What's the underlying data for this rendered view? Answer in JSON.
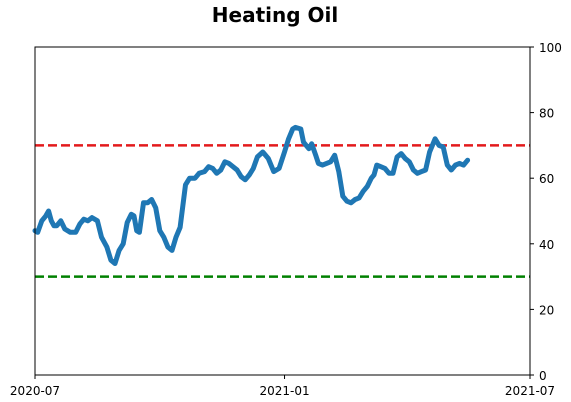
{
  "chart_data": {
    "type": "line",
    "title": "Heating Oil",
    "xlabel": "",
    "ylabel": "",
    "x_ticks": [
      "2020-07",
      "2021-01",
      "2021-07"
    ],
    "y_ticks": [
      "0",
      "20",
      "40",
      "60",
      "80",
      "100"
    ],
    "ylim": [
      0,
      100
    ],
    "y_axis_side": "right",
    "grid": false,
    "reference_lines": [
      {
        "value": 70,
        "color": "#e31a1c",
        "style": "dashed"
      },
      {
        "value": 30,
        "color": "#008000",
        "style": "dashed"
      }
    ],
    "series": [
      {
        "color": "#1f77b4",
        "points": [
          [
            "2020-07-01",
            44
          ],
          [
            "2020-07-03",
            43.5
          ],
          [
            "2020-07-06",
            47
          ],
          [
            "2020-07-09",
            48.5
          ],
          [
            "2020-07-11",
            50
          ],
          [
            "2020-07-13",
            47
          ],
          [
            "2020-07-15",
            45.5
          ],
          [
            "2020-07-17",
            45.5
          ],
          [
            "2020-07-20",
            47
          ],
          [
            "2020-07-23",
            44.5
          ],
          [
            "2020-07-27",
            43.5
          ],
          [
            "2020-07-31",
            43.5
          ],
          [
            "2020-08-03",
            46
          ],
          [
            "2020-08-06",
            47.5
          ],
          [
            "2020-08-09",
            47
          ],
          [
            "2020-08-12",
            48
          ],
          [
            "2020-08-16",
            47
          ],
          [
            "2020-08-19",
            42
          ],
          [
            "2020-08-23",
            39
          ],
          [
            "2020-08-26",
            35
          ],
          [
            "2020-08-29",
            34
          ],
          [
            "2020-09-01",
            38
          ],
          [
            "2020-09-04",
            40
          ],
          [
            "2020-09-07",
            46.5
          ],
          [
            "2020-09-10",
            49
          ],
          [
            "2020-09-12",
            48.5
          ],
          [
            "2020-09-14",
            44
          ],
          [
            "2020-09-16",
            43.5
          ],
          [
            "2020-09-19",
            52.5
          ],
          [
            "2020-09-22",
            52.5
          ],
          [
            "2020-09-25",
            53.5
          ],
          [
            "2020-09-28",
            51
          ],
          [
            "2020-10-01",
            44
          ],
          [
            "2020-10-04",
            42
          ],
          [
            "2020-10-07",
            39
          ],
          [
            "2020-10-10",
            38
          ],
          [
            "2020-10-13",
            42
          ],
          [
            "2020-10-16",
            45
          ],
          [
            "2020-10-20",
            58
          ],
          [
            "2020-10-23",
            60
          ],
          [
            "2020-10-27",
            60
          ],
          [
            "2020-10-30",
            61.5
          ],
          [
            "2020-11-03",
            62
          ],
          [
            "2020-11-06",
            63.5
          ],
          [
            "2020-11-09",
            63
          ],
          [
            "2020-11-12",
            61.5
          ],
          [
            "2020-11-15",
            62.5
          ],
          [
            "2020-11-18",
            65
          ],
          [
            "2020-11-21",
            64.5
          ],
          [
            "2020-11-24",
            63.5
          ],
          [
            "2020-11-27",
            62.5
          ],
          [
            "2020-11-30",
            60.5
          ],
          [
            "2020-12-03",
            59.5
          ],
          [
            "2020-12-06",
            61
          ],
          [
            "2020-12-09",
            63
          ],
          [
            "2020-12-12",
            66.5
          ],
          [
            "2020-12-16",
            68
          ],
          [
            "2020-12-20",
            66
          ],
          [
            "2020-12-24",
            62
          ],
          [
            "2020-12-28",
            63
          ],
          [
            "2021-01-01",
            68
          ],
          [
            "2021-01-04",
            72
          ],
          [
            "2021-01-07",
            75
          ],
          [
            "2021-01-09",
            75.5
          ],
          [
            "2021-01-13",
            75
          ],
          [
            "2021-01-15",
            71
          ],
          [
            "2021-01-17",
            70
          ],
          [
            "2021-01-19",
            69
          ],
          [
            "2021-01-21",
            70.5
          ],
          [
            "2021-01-24",
            67
          ],
          [
            "2021-01-26",
            64.5
          ],
          [
            "2021-01-29",
            64
          ],
          [
            "2021-02-01",
            64.5
          ],
          [
            "2021-02-04",
            65
          ],
          [
            "2021-02-07",
            67
          ],
          [
            "2021-02-10",
            62
          ],
          [
            "2021-02-13",
            54.5
          ],
          [
            "2021-02-16",
            53
          ],
          [
            "2021-02-19",
            52.5
          ],
          [
            "2021-02-22",
            53.5
          ],
          [
            "2021-02-25",
            54
          ],
          [
            "2021-02-28",
            56
          ],
          [
            "2021-03-03",
            57.5
          ],
          [
            "2021-03-06",
            60
          ],
          [
            "2021-03-08",
            61
          ],
          [
            "2021-03-10",
            64
          ],
          [
            "2021-03-13",
            63.5
          ],
          [
            "2021-03-16",
            63
          ],
          [
            "2021-03-19",
            61.5
          ],
          [
            "2021-03-22",
            61.5
          ],
          [
            "2021-03-25",
            66.5
          ],
          [
            "2021-03-28",
            67.5
          ],
          [
            "2021-03-31",
            66
          ],
          [
            "2021-04-03",
            65
          ],
          [
            "2021-04-06",
            62.5
          ],
          [
            "2021-04-09",
            61.5
          ],
          [
            "2021-04-12",
            62
          ],
          [
            "2021-04-15",
            62.5
          ],
          [
            "2021-04-18",
            68
          ],
          [
            "2021-04-22",
            72
          ],
          [
            "2021-04-25",
            70
          ],
          [
            "2021-04-28",
            69.5
          ],
          [
            "2021-05-01",
            64
          ],
          [
            "2021-05-04",
            62.5
          ],
          [
            "2021-05-07",
            64
          ],
          [
            "2021-05-10",
            64.5
          ],
          [
            "2021-05-13",
            64
          ],
          [
            "2021-05-16",
            65.5
          ]
        ]
      }
    ]
  }
}
